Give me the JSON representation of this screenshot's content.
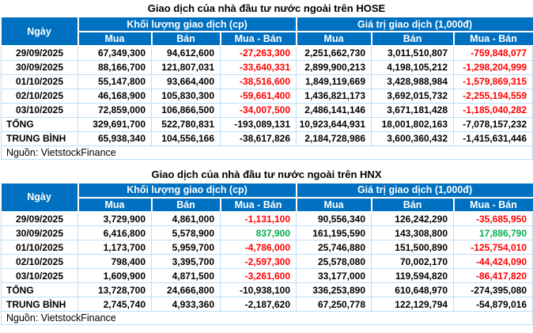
{
  "colors": {
    "header_bg": "#0070C0",
    "header_text": "#FFFFFF",
    "grid_border": "#BDDEF6",
    "negative": "#FF0000",
    "positive": "#00B050",
    "text": "#000000"
  },
  "headers": {
    "date": "Ngày",
    "volume_group": "Khối lượng giao dịch (cp)",
    "value_group": "Giá trị giao dịch (1,000đ)",
    "buy": "Mua",
    "sell": "Bán",
    "net": "Mua - Bán"
  },
  "labels": {
    "total": "TỔNG",
    "average": "TRUNG BÌNH",
    "source": "Nguồn: VietstockFinance"
  },
  "tables": [
    {
      "title": "Giao dịch của nhà đầu tư nước ngoài trên HOSE",
      "rows": [
        {
          "date": "29/09/2025",
          "vol_buy": "67,349,300",
          "vol_sell": "94,612,600",
          "vol_net": "-27,263,300",
          "val_buy": "2,251,662,730",
          "val_sell": "3,011,510,807",
          "val_net": "-759,848,077"
        },
        {
          "date": "30/09/2025",
          "vol_buy": "88,166,700",
          "vol_sell": "121,807,031",
          "vol_net": "-33,640,331",
          "val_buy": "2,899,900,213",
          "val_sell": "4,198,105,212",
          "val_net": "-1,298,204,999"
        },
        {
          "date": "01/10/2025",
          "vol_buy": "55,147,800",
          "vol_sell": "93,664,400",
          "vol_net": "-38,516,600",
          "val_buy": "1,849,119,669",
          "val_sell": "3,428,988,984",
          "val_net": "-1,579,869,315"
        },
        {
          "date": "02/10/2025",
          "vol_buy": "46,168,900",
          "vol_sell": "105,830,300",
          "vol_net": "-59,661,400",
          "val_buy": "1,436,821,173",
          "val_sell": "3,692,015,732",
          "val_net": "-2,255,194,559"
        },
        {
          "date": "03/10/2025",
          "vol_buy": "72,859,000",
          "vol_sell": "106,866,500",
          "vol_net": "-34,007,500",
          "val_buy": "2,486,141,146",
          "val_sell": "3,671,181,428",
          "val_net": "-1,185,040,282"
        }
      ],
      "total": {
        "vol_buy": "329,691,700",
        "vol_sell": "522,780,831",
        "vol_net": "-193,089,131",
        "val_buy": "10,923,644,931",
        "val_sell": "18,001,802,163",
        "val_net": "-7,078,157,232"
      },
      "average": {
        "vol_buy": "65,938,340",
        "vol_sell": "104,556,166",
        "vol_net": "-38,617,826",
        "val_buy": "2,184,728,986",
        "val_sell": "3,600,360,432",
        "val_net": "-1,415,631,446"
      }
    },
    {
      "title": "Giao dịch của nhà đầu tư nước ngoài trên HNX",
      "rows": [
        {
          "date": "29/09/2025",
          "vol_buy": "3,729,900",
          "vol_sell": "4,861,000",
          "vol_net": "-1,131,100",
          "val_buy": "90,556,340",
          "val_sell": "126,242,290",
          "val_net": "-35,685,950"
        },
        {
          "date": "30/09/2025",
          "vol_buy": "6,416,800",
          "vol_sell": "5,578,900",
          "vol_net": "837,900",
          "val_buy": "161,195,590",
          "val_sell": "143,308,800",
          "val_net": "17,886,790"
        },
        {
          "date": "01/10/2025",
          "vol_buy": "1,173,700",
          "vol_sell": "5,959,700",
          "vol_net": "-4,786,000",
          "val_buy": "25,746,880",
          "val_sell": "151,500,890",
          "val_net": "-125,754,010"
        },
        {
          "date": "02/10/2025",
          "vol_buy": "798,400",
          "vol_sell": "3,395,700",
          "vol_net": "-2,597,300",
          "val_buy": "25,578,080",
          "val_sell": "70,002,170",
          "val_net": "-44,424,090"
        },
        {
          "date": "03/10/2025",
          "vol_buy": "1,609,900",
          "vol_sell": "4,871,500",
          "vol_net": "-3,261,600",
          "val_buy": "33,177,000",
          "val_sell": "119,594,820",
          "val_net": "-86,417,820"
        }
      ],
      "total": {
        "vol_buy": "13,728,700",
        "vol_sell": "24,666,800",
        "vol_net": "-10,938,100",
        "val_buy": "336,253,890",
        "val_sell": "610,648,970",
        "val_net": "-274,395,080"
      },
      "average": {
        "vol_buy": "2,745,740",
        "vol_sell": "4,933,360",
        "vol_net": "-2,187,620",
        "val_buy": "67,250,778",
        "val_sell": "122,129,794",
        "val_net": "-54,879,016"
      }
    }
  ]
}
